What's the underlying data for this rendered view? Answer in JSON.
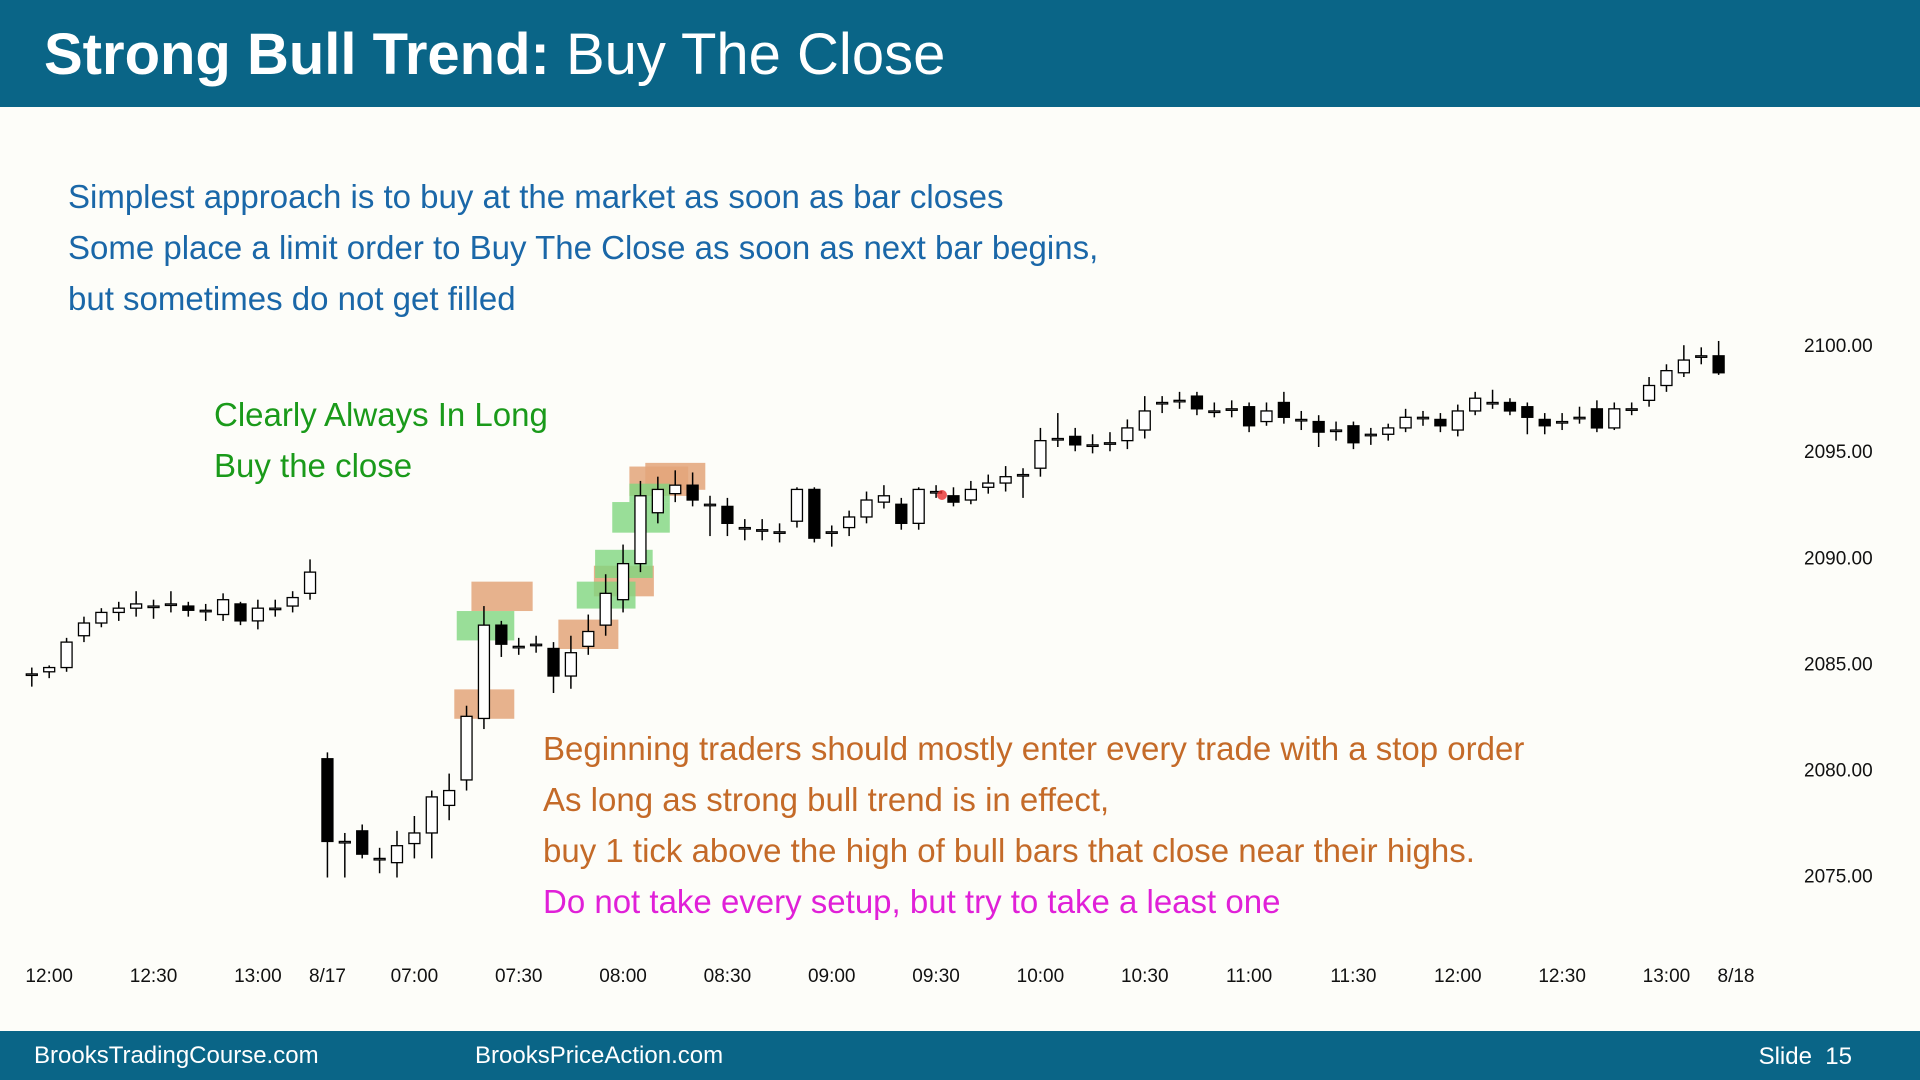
{
  "header": {
    "title_bold": "Strong Bull Trend:",
    "title_rest": "Buy The Close"
  },
  "notes": {
    "blue": [
      "Simplest approach is to buy at the market as soon as bar closes",
      "Some place a limit order to Buy The Close as soon as next bar begins,",
      "but sometimes do not get filled"
    ],
    "green": [
      "Clearly Always In Long",
      "Buy the close"
    ],
    "orange": [
      "Beginning traders should mostly enter every trade with a stop order",
      "As long as strong bull trend is in effect,",
      "buy 1 tick above the high of bull bars that close near their highs."
    ],
    "magenta": [
      "Do not take every setup, but try to take a least one"
    ]
  },
  "footer": {
    "left": "BrooksTradingCourse.com",
    "center": "BrooksPriceAction.com",
    "right": "Slide  15"
  },
  "chart_data": {
    "type": "candlestick",
    "bull_color": "#ffffff",
    "bear_color": "#000000",
    "categories": [
      null,
      "12:00",
      null,
      null,
      null,
      null,
      null,
      "12:30",
      null,
      null,
      null,
      null,
      null,
      "13:00",
      null,
      null,
      null,
      "8/17",
      null,
      null,
      null,
      null,
      "07:00",
      null,
      null,
      null,
      null,
      null,
      "07:30",
      null,
      null,
      null,
      null,
      null,
      "08:00",
      null,
      null,
      null,
      null,
      null,
      "08:30",
      null,
      null,
      null,
      null,
      null,
      "09:00",
      null,
      null,
      null,
      null,
      null,
      "09:30",
      null,
      null,
      null,
      null,
      null,
      "10:00",
      null,
      null,
      null,
      null,
      null,
      "10:30",
      null,
      null,
      null,
      null,
      null,
      "11:00",
      null,
      null,
      null,
      null,
      null,
      "11:30",
      null,
      null,
      null,
      null,
      null,
      "12:00",
      null,
      null,
      null,
      null,
      null,
      "12:30",
      null,
      null,
      null,
      null,
      null,
      "13:00",
      null,
      null,
      null,
      "8/18"
    ],
    "ohlc": [
      [
        2084.5,
        2084.8,
        2083.9,
        2084.5
      ],
      [
        2084.6,
        2084.9,
        2084.3,
        2084.8
      ],
      [
        2084.8,
        2086.2,
        2084.6,
        2086.0
      ],
      [
        2086.3,
        2087.2,
        2086.0,
        2086.9
      ],
      [
        2086.9,
        2087.6,
        2086.7,
        2087.4
      ],
      [
        2087.4,
        2087.9,
        2087.0,
        2087.6
      ],
      [
        2087.6,
        2088.4,
        2087.2,
        2087.8
      ],
      [
        2087.7,
        2088.0,
        2087.1,
        2087.7
      ],
      [
        2087.8,
        2088.4,
        2087.4,
        2087.8
      ],
      [
        2087.7,
        2087.9,
        2087.2,
        2087.5
      ],
      [
        2087.5,
        2087.8,
        2087.0,
        2087.5
      ],
      [
        2087.3,
        2088.3,
        2087.0,
        2088.0
      ],
      [
        2087.8,
        2087.9,
        2086.8,
        2087.0
      ],
      [
        2087.0,
        2088.0,
        2086.6,
        2087.6
      ],
      [
        2087.6,
        2088.0,
        2087.2,
        2087.6
      ],
      [
        2087.7,
        2088.4,
        2087.4,
        2088.1
      ],
      [
        2088.3,
        2089.9,
        2088.0,
        2089.3
      ],
      [
        2080.5,
        2080.8,
        2074.9,
        2076.6
      ],
      [
        2076.6,
        2077.0,
        2074.9,
        2076.6
      ],
      [
        2077.1,
        2077.4,
        2075.8,
        2076.0
      ],
      [
        2075.8,
        2076.3,
        2075.1,
        2075.8
      ],
      [
        2075.6,
        2077.1,
        2074.9,
        2076.4
      ],
      [
        2076.5,
        2077.8,
        2075.8,
        2077.0
      ],
      [
        2077.0,
        2079.0,
        2075.8,
        2078.7
      ],
      [
        2078.3,
        2079.8,
        2077.6,
        2079.0
      ],
      [
        2079.5,
        2083.0,
        2079.0,
        2082.5
      ],
      [
        2082.4,
        2087.7,
        2081.9,
        2086.8
      ],
      [
        2086.8,
        2087.0,
        2085.3,
        2085.9
      ],
      [
        2085.8,
        2086.2,
        2085.4,
        2085.8
      ],
      [
        2085.9,
        2086.3,
        2085.5,
        2085.9
      ],
      [
        2085.7,
        2086.0,
        2083.6,
        2084.4
      ],
      [
        2084.4,
        2086.3,
        2083.8,
        2085.5
      ],
      [
        2085.8,
        2087.3,
        2085.4,
        2086.5
      ],
      [
        2086.8,
        2089.2,
        2086.3,
        2088.3
      ],
      [
        2088.0,
        2090.6,
        2087.4,
        2089.7
      ],
      [
        2089.7,
        2093.6,
        2089.3,
        2092.9
      ],
      [
        2092.1,
        2093.8,
        2091.6,
        2093.2
      ],
      [
        2093.0,
        2094.1,
        2092.6,
        2093.4
      ],
      [
        2093.4,
        2094.0,
        2092.4,
        2092.7
      ],
      [
        2092.5,
        2092.9,
        2091.0,
        2092.5
      ],
      [
        2092.4,
        2092.8,
        2091.0,
        2091.6
      ],
      [
        2091.4,
        2091.8,
        2090.8,
        2091.4
      ],
      [
        2091.3,
        2091.8,
        2090.8,
        2091.3
      ],
      [
        2091.2,
        2091.6,
        2090.7,
        2091.2
      ],
      [
        2091.7,
        2093.3,
        2091.4,
        2093.2
      ],
      [
        2093.2,
        2093.3,
        2090.7,
        2090.9
      ],
      [
        2091.2,
        2091.5,
        2090.5,
        2091.2
      ],
      [
        2091.4,
        2092.2,
        2091.0,
        2091.9
      ],
      [
        2091.9,
        2093.1,
        2091.6,
        2092.7
      ],
      [
        2092.6,
        2093.4,
        2092.3,
        2092.9
      ],
      [
        2092.5,
        2092.8,
        2091.3,
        2091.6
      ],
      [
        2091.6,
        2093.3,
        2091.3,
        2093.2
      ],
      [
        2093.1,
        2093.4,
        2092.8,
        2093.1
      ],
      [
        2092.9,
        2093.3,
        2092.4,
        2092.6
      ],
      [
        2092.7,
        2093.6,
        2092.5,
        2093.2
      ],
      [
        2093.3,
        2093.9,
        2093.0,
        2093.5
      ],
      [
        2093.5,
        2094.3,
        2093.1,
        2093.8
      ],
      [
        2093.9,
        2094.2,
        2092.8,
        2093.9
      ],
      [
        2094.2,
        2096.1,
        2093.8,
        2095.5
      ],
      [
        2095.6,
        2096.8,
        2095.2,
        2095.6
      ],
      [
        2095.7,
        2096.1,
        2095.0,
        2095.3
      ],
      [
        2095.3,
        2095.8,
        2094.9,
        2095.3
      ],
      [
        2095.4,
        2095.9,
        2095.0,
        2095.4
      ],
      [
        2095.5,
        2096.5,
        2095.1,
        2096.1
      ],
      [
        2096.0,
        2097.6,
        2095.6,
        2096.9
      ],
      [
        2097.3,
        2097.6,
        2096.8,
        2097.3
      ],
      [
        2097.4,
        2097.8,
        2097.0,
        2097.4
      ],
      [
        2097.6,
        2097.8,
        2096.7,
        2097.0
      ],
      [
        2096.9,
        2097.3,
        2096.6,
        2096.9
      ],
      [
        2097.0,
        2097.4,
        2096.6,
        2097.0
      ],
      [
        2097.1,
        2097.3,
        2095.9,
        2096.2
      ],
      [
        2096.4,
        2097.3,
        2096.2,
        2096.9
      ],
      [
        2097.3,
        2097.8,
        2096.3,
        2096.6
      ],
      [
        2096.5,
        2096.9,
        2096.0,
        2096.5
      ],
      [
        2096.4,
        2096.7,
        2095.2,
        2095.9
      ],
      [
        2096.0,
        2096.4,
        2095.5,
        2096.0
      ],
      [
        2096.2,
        2096.4,
        2095.1,
        2095.4
      ],
      [
        2095.8,
        2096.1,
        2095.3,
        2095.8
      ],
      [
        2095.8,
        2096.3,
        2095.5,
        2096.1
      ],
      [
        2096.1,
        2097.0,
        2095.9,
        2096.6
      ],
      [
        2096.6,
        2096.9,
        2096.2,
        2096.6
      ],
      [
        2096.5,
        2096.8,
        2095.9,
        2096.2
      ],
      [
        2096.0,
        2097.2,
        2095.7,
        2096.9
      ],
      [
        2096.9,
        2097.8,
        2096.7,
        2097.5
      ],
      [
        2097.3,
        2097.9,
        2097.0,
        2097.3
      ],
      [
        2097.3,
        2097.5,
        2096.7,
        2096.9
      ],
      [
        2097.1,
        2097.3,
        2095.8,
        2096.6
      ],
      [
        2096.5,
        2096.8,
        2095.8,
        2096.2
      ],
      [
        2096.4,
        2096.8,
        2096.0,
        2096.4
      ],
      [
        2096.6,
        2097.1,
        2096.3,
        2096.6
      ],
      [
        2097.0,
        2097.4,
        2095.9,
        2096.1
      ],
      [
        2096.1,
        2097.3,
        2096.0,
        2097.0
      ],
      [
        2097.0,
        2097.3,
        2096.7,
        2097.0
      ],
      [
        2097.4,
        2098.5,
        2097.1,
        2098.1
      ],
      [
        2098.1,
        2099.1,
        2097.8,
        2098.8
      ],
      [
        2098.7,
        2100.0,
        2098.5,
        2099.3
      ],
      [
        2099.5,
        2099.9,
        2099.1,
        2099.5
      ],
      [
        2099.5,
        2100.2,
        2098.6,
        2098.7
      ],
      null
    ],
    "ylim": [
      2072,
      2101
    ],
    "yticks": [
      {
        "value": 2075,
        "label": "2075.00"
      },
      {
        "value": 2080,
        "label": "2080.00"
      },
      {
        "value": 2085,
        "label": "2085.00"
      },
      {
        "value": 2090,
        "label": "2090.00"
      },
      {
        "value": 2095,
        "label": "2095.00"
      },
      {
        "value": 2100,
        "label": "2100.00"
      }
    ]
  }
}
